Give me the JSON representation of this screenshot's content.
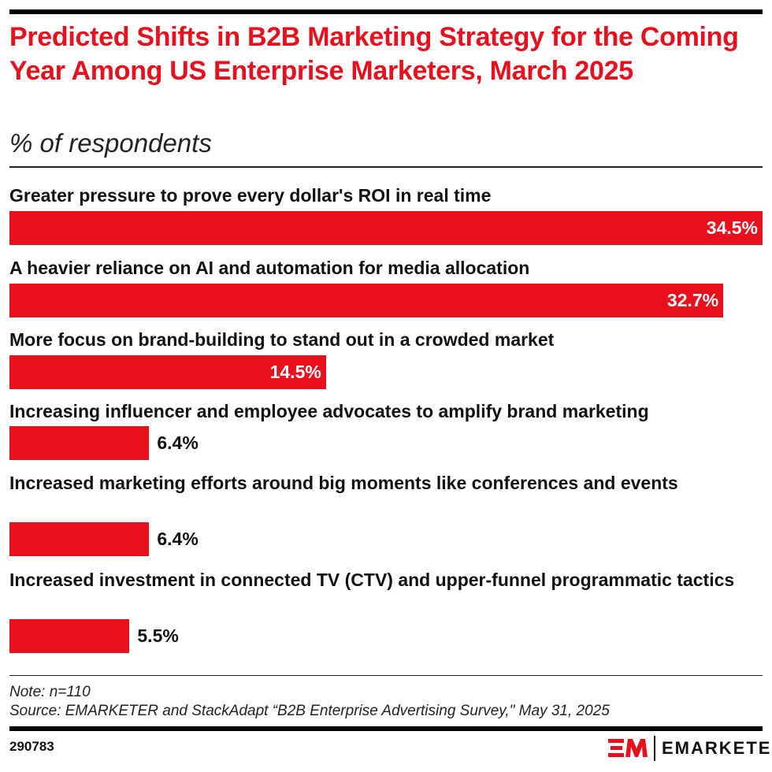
{
  "title": "Predicted Shifts in B2B Marketing Strategy for the Coming Year Among US Enterprise Marketers, March 2025",
  "subtitle": "% of respondents",
  "chart_data": {
    "type": "bar",
    "orientation": "horizontal",
    "categories": [
      "Greater pressure to prove every dollar's ROI in real time",
      "A heavier reliance on AI and automation for media allocation",
      "More focus on brand-building to stand out in a crowded market",
      "Increasing influencer and employee advocates to amplify brand marketing",
      "Increased marketing efforts around big moments like conferences and events",
      "Increased investment in connected TV (CTV) and upper-funnel programmatic tactics"
    ],
    "values": [
      34.5,
      32.7,
      14.5,
      6.4,
      6.4,
      5.5
    ],
    "value_labels": [
      "34.5%",
      "32.7%",
      "14.5%",
      "6.4%",
      "6.4%",
      "5.5%"
    ],
    "bar_color": "#e8101d",
    "xlim": [
      0,
      34.5
    ]
  },
  "note": "Note: n=110",
  "source": "Source: EMARKETER and StackAdapt “B2B Enterprise Advertising Survey,\" May 31, 2025",
  "chart_id": "290783",
  "logo": {
    "mark": "EM",
    "word": "EMARKETER"
  }
}
